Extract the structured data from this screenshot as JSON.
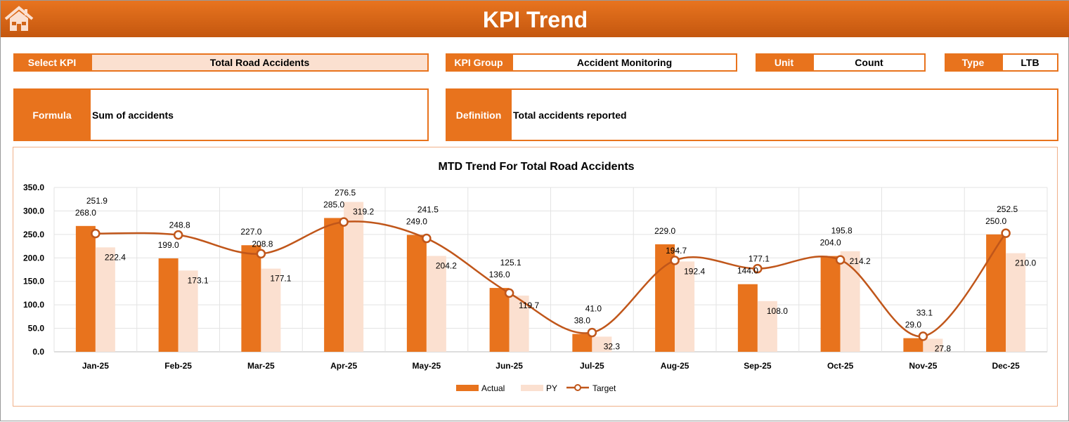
{
  "header": {
    "title": "KPI Trend",
    "home_icon": "home-icon"
  },
  "kpi": {
    "select_label": "Select KPI",
    "select_value": "Total Road Accidents",
    "group_label": "KPI Group",
    "group_value": "Accident Monitoring",
    "unit_label": "Unit",
    "unit_value": "Count",
    "type_label": "Type",
    "type_value": "LTB",
    "formula_label": "Formula",
    "formula_value": "Sum of accidents",
    "definition_label": "Definition",
    "definition_value": "Total accidents reported"
  },
  "colors": {
    "accent": "#e8731d",
    "actual": "#e8731d",
    "py": "#fbe0d0",
    "target": "#c0561a"
  },
  "chart_data": {
    "type": "bar",
    "title": "MTD Trend For Total Road Accidents",
    "categories": [
      "Jan-25",
      "Feb-25",
      "Mar-25",
      "Apr-25",
      "May-25",
      "Jun-25",
      "Jul-25",
      "Aug-25",
      "Sep-25",
      "Oct-25",
      "Nov-25",
      "Dec-25"
    ],
    "series": [
      {
        "name": "Actual",
        "type": "bar",
        "values": [
          268.0,
          199.0,
          227.0,
          285.0,
          249.0,
          136.0,
          38.0,
          229.0,
          144.0,
          204.0,
          29.0,
          250.0
        ]
      },
      {
        "name": "PY",
        "type": "bar",
        "values": [
          222.4,
          173.1,
          177.1,
          319.2,
          204.2,
          119.7,
          32.3,
          192.4,
          108.0,
          214.2,
          27.8,
          210.0
        ]
      },
      {
        "name": "Target",
        "type": "line",
        "values": [
          251.9,
          248.8,
          208.8,
          276.5,
          241.5,
          125.1,
          41.0,
          194.7,
          177.1,
          195.8,
          33.1,
          252.5
        ]
      }
    ],
    "yticks": [
      "0.0",
      "50.0",
      "100.0",
      "150.0",
      "200.0",
      "250.0",
      "300.0",
      "350.0"
    ],
    "ylim": [
      0,
      350
    ],
    "grid": true,
    "legend": "bottom"
  }
}
